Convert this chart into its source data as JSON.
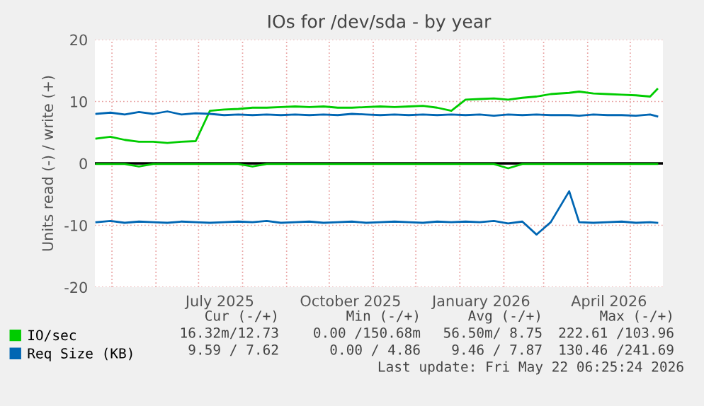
{
  "chart_data": {
    "type": "line",
    "title": "IOs for /dev/sda - by year",
    "ylabel": "Units read (-) / write (+)",
    "x": [
      "2025-04-20",
      "2025-04-30",
      "2025-05-10",
      "2025-05-20",
      "2025-05-30",
      "2025-06-09",
      "2025-06-19",
      "2025-06-29",
      "2025-07-09",
      "2025-07-19",
      "2025-07-29",
      "2025-08-08",
      "2025-08-18",
      "2025-08-28",
      "2025-09-07",
      "2025-09-17",
      "2025-09-27",
      "2025-10-07",
      "2025-10-17",
      "2025-10-27",
      "2025-11-06",
      "2025-11-16",
      "2025-11-26",
      "2025-12-06",
      "2025-12-16",
      "2025-12-26",
      "2026-01-05",
      "2026-01-15",
      "2026-01-25",
      "2026-02-04",
      "2026-02-14",
      "2026-02-24",
      "2026-03-06",
      "2026-03-19",
      "2026-03-26",
      "2026-04-05",
      "2026-04-15",
      "2026-04-25",
      "2026-05-05",
      "2026-05-15",
      "2026-05-20"
    ],
    "series": [
      {
        "name": "IO/sec",
        "color": "#00cc00",
        "values": [
          4.0,
          4.3,
          3.8,
          3.5,
          3.5,
          3.3,
          3.5,
          3.6,
          8.5,
          8.7,
          8.8,
          9.0,
          9.0,
          9.1,
          9.2,
          9.1,
          9.2,
          9.0,
          9.0,
          9.1,
          9.2,
          9.1,
          9.2,
          9.3,
          9.0,
          8.5,
          10.3,
          10.4,
          10.5,
          10.3,
          10.6,
          10.8,
          11.2,
          11.4,
          11.6,
          11.3,
          11.2,
          11.1,
          11.0,
          10.8,
          12.0
        ]
      },
      {
        "name": "Req Size (KB)",
        "color": "#0066b3",
        "values": [
          8.0,
          8.2,
          7.9,
          8.3,
          8.0,
          8.4,
          7.9,
          8.1,
          8.0,
          7.8,
          7.9,
          7.8,
          7.9,
          7.8,
          7.9,
          7.8,
          7.9,
          7.8,
          8.0,
          7.9,
          7.8,
          7.9,
          7.8,
          7.9,
          7.8,
          7.9,
          7.8,
          7.9,
          7.7,
          7.9,
          7.8,
          7.9,
          7.8,
          7.8,
          7.7,
          7.9,
          7.8,
          7.8,
          7.7,
          7.9,
          7.6
        ]
      },
      {
        "color": "#00cc00",
        "values": [
          -0.1,
          -0.1,
          -0.1,
          -0.5,
          -0.1,
          -0.1,
          -0.1,
          -0.1,
          -0.1,
          -0.1,
          -0.1,
          -0.5,
          -0.1,
          -0.1,
          -0.1,
          -0.1,
          -0.1,
          -0.1,
          -0.1,
          -0.1,
          -0.1,
          -0.1,
          -0.1,
          -0.1,
          -0.1,
          -0.1,
          -0.1,
          -0.1,
          -0.1,
          -0.8,
          -0.1,
          -0.1,
          -0.1,
          -0.1,
          -0.1,
          -0.1,
          -0.1,
          -0.1,
          -0.1,
          -0.1,
          -0.1
        ]
      },
      {
        "color": "#0066b3",
        "values": [
          -9.5,
          -9.3,
          -9.6,
          -9.4,
          -9.5,
          -9.6,
          -9.4,
          -9.5,
          -9.6,
          -9.5,
          -9.4,
          -9.5,
          -9.3,
          -9.6,
          -9.5,
          -9.4,
          -9.6,
          -9.5,
          -9.4,
          -9.6,
          -9.5,
          -9.4,
          -9.5,
          -9.6,
          -9.4,
          -9.5,
          -9.4,
          -9.5,
          -9.3,
          -9.7,
          -9.4,
          -11.5,
          -9.5,
          -4.5,
          -9.5,
          -9.6,
          -9.5,
          -9.4,
          -9.6,
          -9.5,
          -9.6
        ]
      }
    ],
    "xlim": [
      "2025-04-19",
      "2026-05-24"
    ],
    "xticks": [
      {
        "value": "2025-05-01",
        "label": null
      },
      {
        "value": "2025-06-01",
        "label": null
      },
      {
        "value": "2025-07-01",
        "label": null
      },
      {
        "value": "2025-07-16",
        "label": "July 2025"
      },
      {
        "value": "2025-08-01",
        "label": null
      },
      {
        "value": "2025-09-01",
        "label": null
      },
      {
        "value": "2025-10-01",
        "label": null
      },
      {
        "value": "2025-10-16",
        "label": "October 2025"
      },
      {
        "value": "2025-11-01",
        "label": null
      },
      {
        "value": "2025-12-01",
        "label": null
      },
      {
        "value": "2026-01-01",
        "label": null
      },
      {
        "value": "2026-01-16",
        "label": "January 2026"
      },
      {
        "value": "2026-02-01",
        "label": null
      },
      {
        "value": "2026-03-01",
        "label": null
      },
      {
        "value": "2026-04-01",
        "label": null
      },
      {
        "value": "2026-04-16",
        "label": "April 2026"
      },
      {
        "value": "2026-05-01",
        "label": null
      }
    ],
    "ylim": [
      -20,
      20
    ],
    "yticks": [
      {
        "value": -20,
        "label": "-20"
      },
      {
        "value": -10,
        "label": "-10"
      },
      0,
      10,
      20
    ],
    "grid": true,
    "legend": "bottom",
    "ref_lines": [
      {
        "axis": "y",
        "value": 0,
        "color": "#000000"
      }
    ],
    "annotations": [
      "Cur (-/+)",
      "Min (-/+)",
      "Avg (-/+)",
      "Max (-/+)",
      "16.32m/12.73",
      "0.00 /150.68m",
      "56.50m/ 8.75",
      "222.61 /103.96",
      "9.59 / 7.62",
      "0.00 / 4.86",
      "9.46 / 7.87",
      "130.46 /241.69",
      "Last update: Fri May 22 06:25:24 2026"
    ]
  }
}
